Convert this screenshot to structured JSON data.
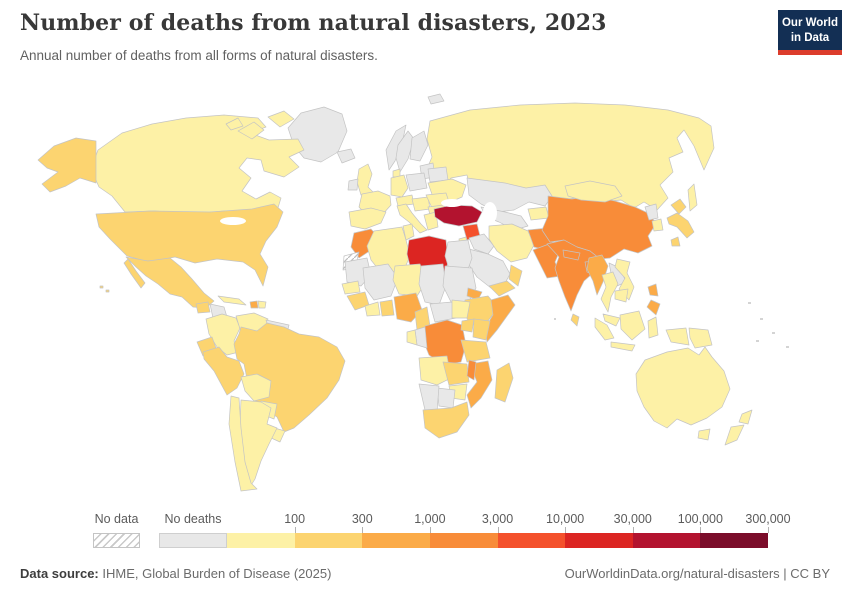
{
  "header": {
    "title": "Number of deaths from natural disasters, 2023",
    "subtitle": "Annual number of deaths from all forms of natural disasters.",
    "logo": {
      "line1": "Our World",
      "line2": "in Data",
      "bg_color": "#132f54",
      "accent_color": "#dc3c2c"
    }
  },
  "legend": {
    "no_data_label": "No data",
    "no_deaths_label": "No deaths",
    "tick_labels": [
      "100",
      "300",
      "1,000",
      "3,000",
      "10,000",
      "30,000",
      "100,000",
      "300,000"
    ]
  },
  "footer": {
    "source_label": "Data source:",
    "source_text": " IHME, Global Burden of Disease (2025)",
    "attribution": "OurWorldinData.org/natural-disasters | CC BY"
  },
  "chart_data": {
    "type": "heatmap",
    "variant": "choropleth-world-map",
    "title": "Number of deaths from natural disasters",
    "year": "2023",
    "unit": "deaths",
    "legend_position": "bottom",
    "no_data": {
      "label": "No data",
      "style": "hatched"
    },
    "bins": [
      {
        "label": "No deaths",
        "color": "#e8e8e8"
      },
      {
        "label": "up to 100",
        "color": "#fdf1a6"
      },
      {
        "label": "100–300",
        "color": "#fcd470"
      },
      {
        "label": "300–1,000",
        "color": "#fbab48"
      },
      {
        "label": "1,000–3,000",
        "color": "#f88c39"
      },
      {
        "label": "3,000–10,000",
        "color": "#f4512c"
      },
      {
        "label": "10,000–30,000",
        "color": "#dc2522"
      },
      {
        "label": "30,000–100,000",
        "color": "#b3132f"
      },
      {
        "label": "100,000–300,000",
        "color": "#7b0d2a"
      }
    ],
    "countries": {
      "greenland": 0,
      "iceland": 0,
      "svalbard": 0,
      "canada": 1,
      "united-states": 2,
      "mexico": 2,
      "guatemala": 2,
      "nicaragua": 0,
      "panama": 1,
      "cuba": 1,
      "haiti": 3,
      "dominican-republic": 1,
      "colombia": 1,
      "venezuela": 1,
      "guyana": 0,
      "ecuador": 2,
      "peru": 2,
      "brazil": 2,
      "bolivia": 1,
      "paraguay": 1,
      "uruguay": 1,
      "chile": 1,
      "argentina": 1,
      "united-kingdom": 1,
      "ireland": 0,
      "norway": 0,
      "sweden": 0,
      "finland": 0,
      "baltic-states": 0,
      "denmark": 1,
      "germany": 1,
      "poland": 0,
      "france": 1,
      "spain": 1,
      "alpine-states": 1,
      "italy": 1,
      "balkans": 1,
      "romania": 1,
      "bulgaria": 1,
      "greece": 1,
      "belarus": 0,
      "ukraine": 1,
      "russia": 1,
      "kazakhstan": 0,
      "uzbekistan": 0,
      "kyrgyzstan": 1,
      "turkey": 7,
      "syria": 5,
      "levant": 1,
      "iraq": 0,
      "saudi-arabia": 0,
      "yemen": 2,
      "oman": 2,
      "iran": 1,
      "afghanistan": 4,
      "pakistan": 4,
      "india": 4,
      "nepal": 4,
      "bangladesh": 4,
      "sri-lanka": 2,
      "china": 4,
      "mongolia": 1,
      "north-korea": 0,
      "south-korea": 1,
      "japan": 2,
      "myanmar": 3,
      "thailand": 1,
      "laos": 0,
      "vietnam": 1,
      "cambodia": 1,
      "malaysia": 1,
      "philippines": 3,
      "indonesia": 1,
      "papua-new-guinea": 1,
      "australia": 1,
      "new-zealand": 1,
      "morocco": 4,
      "western-sahara": -1,
      "algeria": 1,
      "tunisia": 1,
      "libya": 6,
      "egypt": 0,
      "mauritania": 0,
      "mali": 0,
      "niger": 1,
      "chad": 0,
      "sudan": 0,
      "eritrea": 3,
      "ethiopia": 2,
      "somalia": 3,
      "senegal": 1,
      "guinea": 2,
      "ivory-coast": 1,
      "ghana": 2,
      "nigeria": 3,
      "cameroon": 2,
      "central-african-republic": 0,
      "south-sudan": 1,
      "dr-congo": 4,
      "congo": 0,
      "gabon": 1,
      "uganda": 2,
      "kenya": 2,
      "tanzania": 2,
      "angola": 1,
      "zambia": 2,
      "malawi": 4,
      "mozambique": 3,
      "zimbabwe": 1,
      "botswana": 0,
      "namibia": 0,
      "south-africa": 2,
      "madagascar": 2
    }
  }
}
